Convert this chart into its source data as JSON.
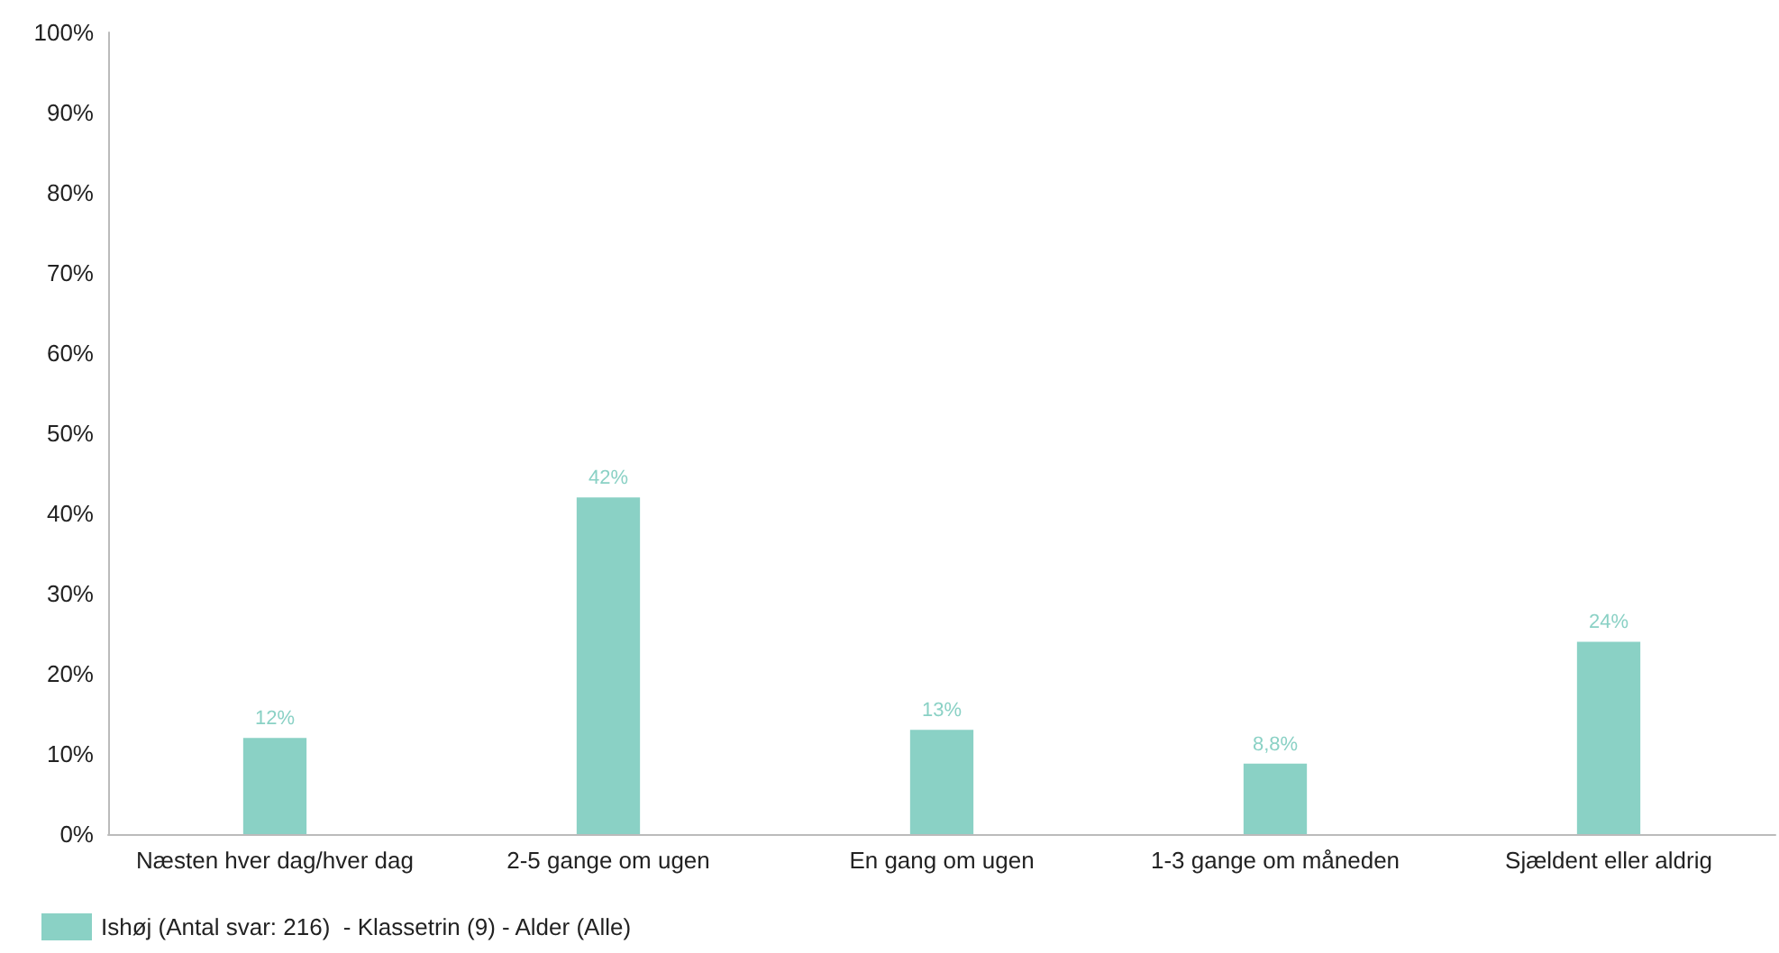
{
  "chart_data": {
    "type": "bar",
    "categories": [
      "Næsten hver dag/hver dag",
      "2-5 gange om ugen",
      "En gang om ugen",
      "1-3 gange om måneden",
      "Sjældent eller aldrig"
    ],
    "series": [
      {
        "name": "Ishøj (Antal svar: 216)  - Klassetrin (9) - Alder (Alle)",
        "color": "#8ad1c5",
        "values": [
          12,
          42,
          13,
          8.8,
          24
        ],
        "value_labels": [
          "12%",
          "42%",
          "13%",
          "8,8%",
          "24%"
        ]
      }
    ],
    "ylim": [
      0,
      100
    ],
    "yticks": [
      {
        "value": 0,
        "label": "0%"
      },
      {
        "value": 10,
        "label": "10%"
      },
      {
        "value": 20,
        "label": "20%"
      },
      {
        "value": 30,
        "label": "30%"
      },
      {
        "value": 40,
        "label": "40%"
      },
      {
        "value": 50,
        "label": "50%"
      },
      {
        "value": 60,
        "label": "60%"
      },
      {
        "value": 70,
        "label": "70%"
      },
      {
        "value": 80,
        "label": "80%"
      },
      {
        "value": 90,
        "label": "90%"
      },
      {
        "value": 100,
        "label": "100%"
      }
    ],
    "grid": false,
    "legend": "bottom left"
  }
}
